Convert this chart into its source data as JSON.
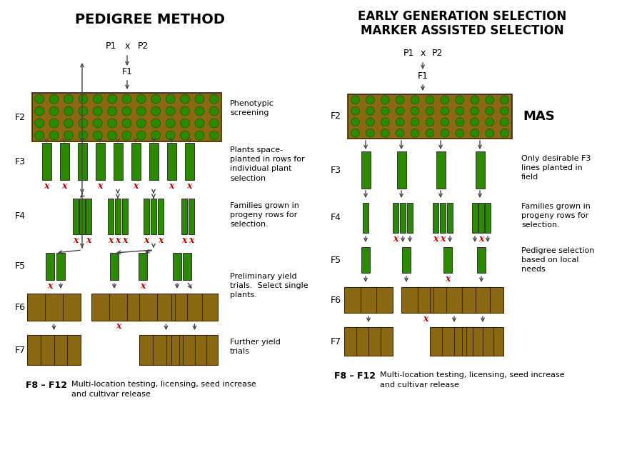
{
  "title_left": "PEDIGREE METHOD",
  "title_right_line1": "EARLY GENERATION SELECTION",
  "title_right_line2": "MARKER ASSISTED SELECTION",
  "bg_color": "#ffffff",
  "gold": "#8B6914",
  "green": "#2d8a00",
  "red": "#cc0000",
  "black": "#000000",
  "gray_arrow": "#666666"
}
